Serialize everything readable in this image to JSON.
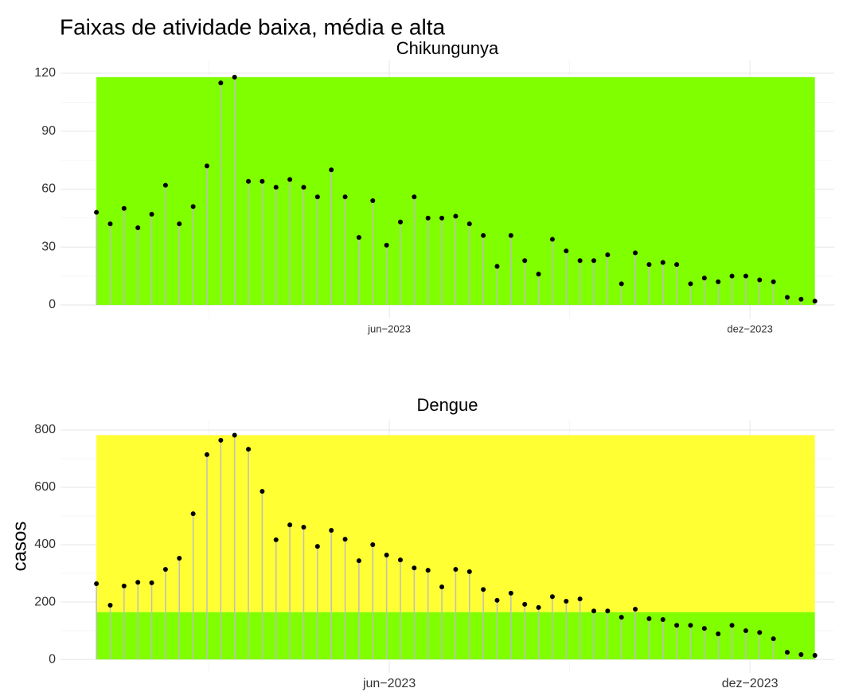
{
  "title": "Faixas de atividade baixa, média e alta",
  "chart_data": [
    {
      "type": "lollipop",
      "title": "Chikungunya",
      "x": [
        1,
        2,
        3,
        4,
        5,
        6,
        7,
        8,
        9,
        10,
        11,
        12,
        13,
        14,
        15,
        16,
        17,
        18,
        19,
        20,
        21,
        22,
        23,
        24,
        25,
        26,
        27,
        28,
        29,
        30,
        31,
        32,
        33,
        34,
        35,
        36,
        37,
        38,
        39,
        40,
        41,
        42,
        43,
        44,
        45,
        46,
        47,
        48,
        49,
        50,
        51,
        52,
        53
      ],
      "values": [
        48,
        42,
        50,
        40,
        47,
        62,
        42,
        51,
        72,
        115,
        118,
        64,
        64,
        61,
        65,
        61,
        56,
        70,
        56,
        35,
        54,
        31,
        43,
        56,
        45,
        45,
        46,
        42,
        36,
        20,
        36,
        23,
        16,
        34,
        28,
        23,
        23,
        26,
        11,
        27,
        21,
        22,
        21,
        11,
        14,
        12,
        15,
        15,
        13,
        12,
        4,
        3,
        2
      ],
      "bands": [
        {
          "ymin": 0,
          "ymax": 118,
          "color": "#7fff00"
        }
      ],
      "point_color": "#000000",
      "stem_color": "#bebebe",
      "xlim": [
        -1.6,
        54.4
      ],
      "xticks": [
        {
          "value": 22.2,
          "label": "jun−2023"
        },
        {
          "value": 48.3,
          "label": "dez−2023"
        }
      ],
      "ylim": [
        -7,
        127
      ],
      "yticks": [
        0,
        30,
        60,
        90,
        120
      ],
      "grid": true
    },
    {
      "type": "lollipop",
      "title": "Dengue",
      "ylabel": "casos",
      "x": [
        1,
        2,
        3,
        4,
        5,
        6,
        7,
        8,
        9,
        10,
        11,
        12,
        13,
        14,
        15,
        16,
        17,
        18,
        19,
        20,
        21,
        22,
        23,
        24,
        25,
        26,
        27,
        28,
        29,
        30,
        31,
        32,
        33,
        34,
        35,
        36,
        37,
        38,
        39,
        40,
        41,
        42,
        43,
        44,
        45,
        46,
        47,
        48,
        49,
        50,
        51,
        52,
        53
      ],
      "values": [
        264,
        189,
        256,
        269,
        267,
        314,
        353,
        508,
        714,
        764,
        782,
        733,
        586,
        417,
        469,
        461,
        394,
        450,
        419,
        344,
        400,
        364,
        347,
        319,
        311,
        253,
        314,
        306,
        244,
        206,
        231,
        192,
        181,
        219,
        203,
        211,
        169,
        169,
        147,
        175,
        142,
        139,
        119,
        119,
        108,
        89,
        119,
        100,
        94,
        72,
        25,
        17,
        14
      ],
      "bands": [
        {
          "ymin": 0,
          "ymax": 165,
          "color": "#7fff00"
        },
        {
          "ymin": 165,
          "ymax": 782,
          "color": "#ffff33"
        }
      ],
      "point_color": "#000000",
      "stem_color": "#bebebe",
      "xlim": [
        -1.6,
        54.4
      ],
      "xticks": [
        {
          "value": 22.2,
          "label": "jun−2023"
        },
        {
          "value": 48.3,
          "label": "dez−2023"
        }
      ],
      "ylim": [
        -47,
        836
      ],
      "yticks": [
        0,
        200,
        400,
        600,
        800
      ],
      "grid": true
    }
  ]
}
